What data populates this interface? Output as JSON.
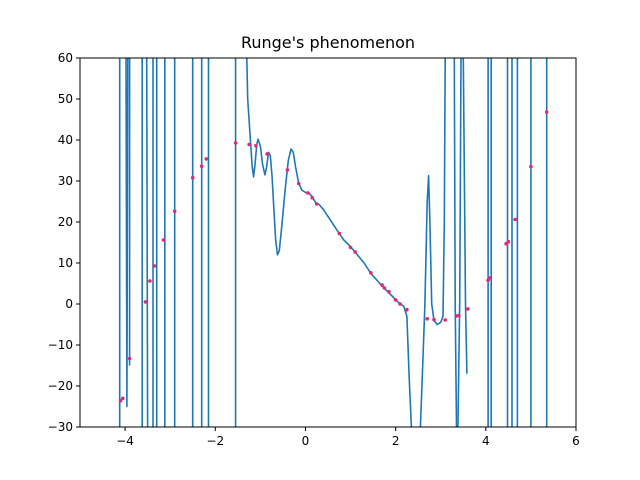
{
  "chart_data": {
    "type": "line",
    "title": "Runge's phenomenon",
    "xlabel": "",
    "ylabel": "",
    "xlim": [
      -5,
      6
    ],
    "ylim": [
      -30,
      60
    ],
    "xticks": [
      -4,
      -2,
      0,
      2,
      4,
      6
    ],
    "yticks": [
      -30,
      -20,
      -10,
      0,
      10,
      20,
      30,
      40,
      50,
      60
    ],
    "grid": false,
    "colors": {
      "line": "#1f77b4",
      "points": "#e0287a"
    },
    "points": [
      [
        -4.1,
        -23.6
      ],
      [
        -4.05,
        -23.0
      ],
      [
        -3.9,
        -13.3
      ],
      [
        -3.55,
        0.5
      ],
      [
        -3.45,
        5.6
      ],
      [
        -3.35,
        9.3
      ],
      [
        -3.15,
        15.6
      ],
      [
        -2.9,
        22.6
      ],
      [
        -2.5,
        30.8
      ],
      [
        -2.3,
        33.6
      ],
      [
        -2.2,
        35.4
      ],
      [
        -1.55,
        39.3
      ],
      [
        -1.25,
        38.9
      ],
      [
        -1.1,
        38.6
      ],
      [
        -0.85,
        36.6
      ],
      [
        -0.4,
        32.7
      ],
      [
        -0.15,
        29.4
      ],
      [
        0.05,
        27.1
      ],
      [
        0.15,
        25.9
      ],
      [
        0.25,
        24.4
      ],
      [
        0.75,
        17.2
      ],
      [
        1.0,
        13.8
      ],
      [
        1.1,
        12.7
      ],
      [
        1.45,
        7.6
      ],
      [
        1.7,
        4.6
      ],
      [
        1.75,
        3.9
      ],
      [
        1.85,
        3.0
      ],
      [
        2.0,
        1.0
      ],
      [
        2.1,
        0.0
      ],
      [
        2.25,
        -1.4
      ],
      [
        2.7,
        -3.6
      ],
      [
        2.85,
        -3.8
      ],
      [
        3.1,
        -3.9
      ],
      [
        3.35,
        -2.9
      ],
      [
        3.4,
        -2.8
      ],
      [
        3.6,
        -1.2
      ],
      [
        4.05,
        5.8
      ],
      [
        4.1,
        6.4
      ],
      [
        4.45,
        14.7
      ],
      [
        4.5,
        15.2
      ],
      [
        4.65,
        20.6
      ],
      [
        5.0,
        33.5
      ],
      [
        5.35,
        46.8
      ]
    ],
    "curve_segments": [
      [
        [
          -4.12,
          -30
        ],
        [
          -4.12,
          60
        ]
      ],
      [
        [
          -3.98,
          60
        ],
        [
          -3.96,
          -25
        ],
        [
          -3.94,
          60
        ]
      ],
      [
        [
          -3.9,
          60
        ],
        [
          -3.9,
          -15
        ]
      ],
      [
        [
          -3.62,
          -30
        ],
        [
          -3.62,
          60
        ]
      ],
      [
        [
          -3.52,
          60
        ],
        [
          -3.5,
          -30
        ]
      ],
      [
        [
          -3.38,
          -30
        ],
        [
          -3.38,
          60
        ]
      ],
      [
        [
          -3.3,
          60
        ],
        [
          -3.3,
          -30
        ]
      ],
      [
        [
          -3.12,
          -30
        ],
        [
          -3.12,
          60
        ]
      ],
      [
        [
          -2.9,
          60
        ],
        [
          -2.9,
          -30
        ]
      ],
      [
        [
          -2.5,
          -30
        ],
        [
          -2.5,
          60
        ]
      ],
      [
        [
          -2.3,
          60
        ],
        [
          -2.3,
          -30
        ]
      ],
      [
        [
          -2.15,
          -30
        ],
        [
          -2.15,
          60
        ]
      ],
      [
        [
          -1.55,
          -30
        ],
        [
          -1.55,
          60
        ]
      ],
      [
        [
          -1.3,
          60
        ],
        [
          -1.28,
          50
        ],
        [
          -1.22,
          40
        ],
        [
          -1.18,
          33.5
        ],
        [
          -1.15,
          31
        ],
        [
          -1.12,
          34
        ],
        [
          -1.08,
          39
        ],
        [
          -1.05,
          40.2
        ],
        [
          -1.0,
          38.5
        ],
        [
          -0.95,
          34
        ],
        [
          -0.9,
          31.5
        ],
        [
          -0.86,
          33.5
        ],
        [
          -0.82,
          37
        ],
        [
          -0.78,
          36.2
        ],
        [
          -0.74,
          31
        ],
        [
          -0.7,
          23
        ],
        [
          -0.66,
          15.5
        ],
        [
          -0.62,
          12
        ],
        [
          -0.58,
          13
        ],
        [
          -0.52,
          19.5
        ],
        [
          -0.45,
          28
        ],
        [
          -0.38,
          35
        ],
        [
          -0.32,
          37.8
        ],
        [
          -0.27,
          37
        ],
        [
          -0.22,
          33.5
        ],
        [
          -0.15,
          29.5
        ],
        [
          -0.08,
          27.8
        ],
        [
          0.0,
          27.2
        ],
        [
          0.08,
          27.0
        ],
        [
          0.15,
          26.2
        ],
        [
          0.22,
          24.8
        ],
        [
          0.3,
          24.3
        ],
        [
          0.4,
          23.0
        ],
        [
          0.55,
          20.5
        ],
        [
          0.7,
          18.0
        ],
        [
          0.85,
          15.6
        ],
        [
          1.0,
          14.0
        ],
        [
          1.15,
          12.0
        ],
        [
          1.3,
          10.0
        ],
        [
          1.45,
          7.5
        ],
        [
          1.6,
          5.6
        ],
        [
          1.75,
          3.8
        ],
        [
          1.9,
          2.2
        ],
        [
          2.05,
          0.5
        ],
        [
          2.18,
          -0.6
        ],
        [
          2.25,
          -3.0
        ],
        [
          2.3,
          -18
        ],
        [
          2.35,
          -30
        ]
      ],
      [
        [
          2.55,
          -30
        ],
        [
          2.6,
          -15
        ],
        [
          2.65,
          0
        ],
        [
          2.7,
          25
        ],
        [
          2.73,
          31.3
        ],
        [
          2.76,
          20
        ],
        [
          2.8,
          0
        ],
        [
          2.85,
          -4
        ],
        [
          2.92,
          -5
        ],
        [
          3.0,
          -4.5
        ],
        [
          3.05,
          -3
        ],
        [
          3.08,
          20
        ],
        [
          3.1,
          60
        ]
      ],
      [
        [
          3.3,
          60
        ],
        [
          3.32,
          0
        ],
        [
          3.35,
          -30
        ]
      ],
      [
        [
          3.38,
          -30
        ],
        [
          3.42,
          0
        ],
        [
          3.45,
          60
        ]
      ],
      [
        [
          3.5,
          60
        ],
        [
          3.55,
          0
        ],
        [
          3.58,
          -17
        ]
      ],
      [
        [
          4.05,
          -30
        ],
        [
          4.05,
          60
        ]
      ],
      [
        [
          4.12,
          60
        ],
        [
          4.12,
          -30
        ]
      ],
      [
        [
          4.48,
          -30
        ],
        [
          4.48,
          60
        ]
      ],
      [
        [
          4.58,
          60
        ],
        [
          4.58,
          -30
        ]
      ],
      [
        [
          4.7,
          -30
        ],
        [
          4.7,
          60
        ]
      ],
      [
        [
          5.0,
          -30
        ],
        [
          5.0,
          60
        ]
      ],
      [
        [
          5.35,
          -30
        ],
        [
          5.35,
          60
        ]
      ]
    ]
  }
}
